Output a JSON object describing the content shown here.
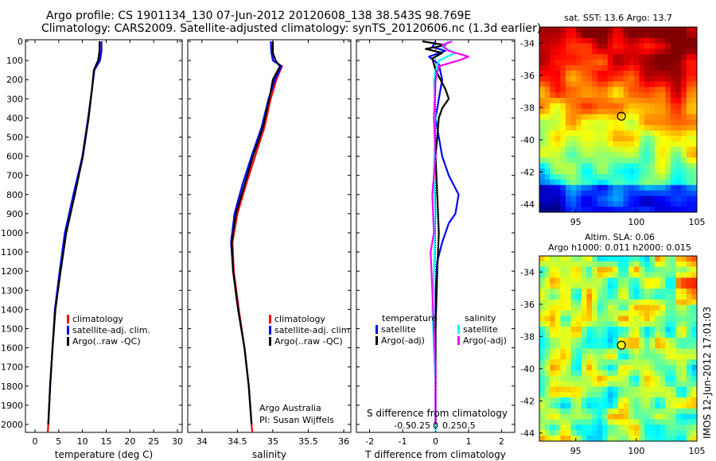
{
  "header": {
    "line1": "Argo profile: CS 1901134_130 07-Jun-2012 20120608_138 38.543S 98.769E",
    "line2": "Climatology: CARS2009. Satellite-adjusted climatology: synTS_20120606.nc (1.3d earlier)"
  },
  "chart_data": [
    {
      "type": "line",
      "name": "temperature-panel",
      "xlabel": "temperature (deg C)",
      "ylabel": "",
      "xlim": [
        -2,
        31
      ],
      "ylim": [
        2050,
        0
      ],
      "xticks": [
        0,
        5,
        10,
        15,
        20,
        25,
        30
      ],
      "yticks": [
        0,
        100,
        200,
        300,
        400,
        500,
        600,
        700,
        800,
        900,
        1000,
        1100,
        1200,
        1300,
        1400,
        1500,
        1600,
        1700,
        1800,
        1900,
        2000
      ],
      "legend": [
        "climatology",
        "satellite-adj. clim.",
        "Argo(..raw -QC)"
      ],
      "legend_colors": [
        "#ff0000",
        "#0000ff",
        "#000000"
      ],
      "series": [
        {
          "name": "climatology",
          "color": "#ff0000",
          "points": [
            [
              14,
              0
            ],
            [
              14,
              50
            ],
            [
              13.7,
              100
            ],
            [
              12.5,
              150
            ],
            [
              12,
              250
            ],
            [
              11.2,
              400
            ],
            [
              10,
              600
            ],
            [
              8.3,
              800
            ],
            [
              6.5,
              1000
            ],
            [
              5.3,
              1200
            ],
            [
              4.3,
              1400
            ],
            [
              3.7,
              1600
            ],
            [
              3.2,
              1800
            ],
            [
              2.8,
              2000
            ],
            [
              2.7,
              2040
            ]
          ]
        },
        {
          "name": "satellite-adj. clim.",
          "color": "#0000ff",
          "points": [
            [
              14,
              0
            ],
            [
              14,
              50
            ],
            [
              13.7,
              100
            ],
            [
              12.5,
              150
            ],
            [
              12,
              250
            ],
            [
              11.2,
              400
            ],
            [
              10,
              600
            ],
            [
              8.1,
              800
            ],
            [
              6.3,
              1000
            ],
            [
              5.2,
              1200
            ],
            [
              4.2,
              1400
            ],
            [
              3.7,
              1600
            ],
            [
              3.2,
              1800
            ],
            [
              2.8,
              2000
            ]
          ]
        },
        {
          "name": "Argo(..raw -QC)",
          "color": "#000000",
          "points": [
            [
              13.6,
              0
            ],
            [
              13.6,
              50
            ],
            [
              13.3,
              100
            ],
            [
              12.4,
              150
            ],
            [
              12,
              250
            ],
            [
              11.3,
              400
            ],
            [
              10.1,
              600
            ],
            [
              8.4,
              800
            ],
            [
              6.6,
              1000
            ],
            [
              5.4,
              1200
            ],
            [
              4.3,
              1400
            ],
            [
              3.7,
              1600
            ],
            [
              3.2,
              1800
            ],
            [
              2.8,
              2000
            ]
          ]
        }
      ]
    },
    {
      "type": "line",
      "name": "salinity-panel",
      "xlabel": "salinity",
      "xlim": [
        33.8,
        36.1
      ],
      "ylim": [
        2050,
        0
      ],
      "xticks": [
        34,
        34.5,
        35,
        35.5,
        36
      ],
      "legend": [
        "climatology",
        "satellite-adj. clim.",
        "Argo(..raw -QC)"
      ],
      "legend_colors": [
        "#ff0000",
        "#0000ff",
        "#000000"
      ],
      "annotation": [
        "Argo Australia",
        "PI: Susan Wijffels"
      ],
      "series": [
        {
          "name": "climatology",
          "color": "#ff0000",
          "points": [
            [
              35.0,
              0
            ],
            [
              35.0,
              60
            ],
            [
              35.0,
              100
            ],
            [
              35.13,
              130
            ],
            [
              35.05,
              200
            ],
            [
              34.97,
              300
            ],
            [
              34.88,
              450
            ],
            [
              34.75,
              600
            ],
            [
              34.62,
              750
            ],
            [
              34.5,
              900
            ],
            [
              34.43,
              1050
            ],
            [
              34.45,
              1200
            ],
            [
              34.52,
              1400
            ],
            [
              34.6,
              1600
            ],
            [
              34.66,
              1800
            ],
            [
              34.7,
              2000
            ],
            [
              34.71,
              2040
            ]
          ]
        },
        {
          "name": "satellite-adj. clim.",
          "color": "#0000ff",
          "points": [
            [
              34.97,
              0
            ],
            [
              34.98,
              60
            ],
            [
              35.0,
              100
            ],
            [
              35.12,
              130
            ],
            [
              35.03,
              200
            ],
            [
              34.94,
              300
            ],
            [
              34.84,
              450
            ],
            [
              34.7,
              600
            ],
            [
              34.57,
              750
            ],
            [
              34.46,
              900
            ],
            [
              34.41,
              1050
            ],
            [
              34.44,
              1200
            ],
            [
              34.51,
              1400
            ],
            [
              34.6,
              1600
            ],
            [
              34.66,
              1800
            ],
            [
              34.7,
              2000
            ]
          ]
        },
        {
          "name": "Argo(..raw -QC)",
          "color": "#000000",
          "points": [
            [
              35.0,
              0
            ],
            [
              35.0,
              60
            ],
            [
              35.04,
              100
            ],
            [
              35.1,
              130
            ],
            [
              35.0,
              200
            ],
            [
              34.95,
              300
            ],
            [
              34.86,
              450
            ],
            [
              34.72,
              600
            ],
            [
              34.6,
              750
            ],
            [
              34.48,
              900
            ],
            [
              34.42,
              1050
            ],
            [
              34.44,
              1200
            ],
            [
              34.51,
              1400
            ],
            [
              34.6,
              1600
            ],
            [
              34.66,
              1800
            ],
            [
              34.7,
              2000
            ]
          ]
        }
      ]
    },
    {
      "type": "line",
      "name": "difference-panel",
      "xlabel": "T difference from climatology",
      "xlabel2": "S difference from climatology",
      "xlim": [
        -2.4,
        2.4
      ],
      "ylim": [
        2050,
        0
      ],
      "xticks": [
        -2,
        -1,
        0,
        1,
        2
      ],
      "xticks_labels": [
        "-2",
        "-1",
        "0",
        "1",
        "2"
      ],
      "xticks2": [
        -1,
        -0.5,
        0,
        0.5,
        1
      ],
      "xticks2_labels": [
        "-0.5",
        "-0.25",
        "0",
        "0.25",
        "0.5"
      ],
      "legend_groups": [
        {
          "title": "temperature",
          "items": [
            "satellite",
            "Argo(-adj)"
          ],
          "colors": [
            "#0000ff",
            "#000000"
          ]
        },
        {
          "title": "salinity",
          "items": [
            "satellite",
            "Argo(-adj)"
          ],
          "colors": [
            "#00ffff",
            "#ff00ff"
          ]
        }
      ],
      "series": [
        {
          "name": "T satellite",
          "color": "#0000ff",
          "points": [
            [
              0,
              0
            ],
            [
              -0.1,
              30
            ],
            [
              0.3,
              50
            ],
            [
              -0.2,
              80
            ],
            [
              0.1,
              120
            ],
            [
              0.2,
              200
            ],
            [
              0.1,
              300
            ],
            [
              0,
              400
            ],
            [
              0.1,
              500
            ],
            [
              0.2,
              600
            ],
            [
              0.4,
              700
            ],
            [
              0.7,
              800
            ],
            [
              0.6,
              900
            ],
            [
              0.4,
              950
            ],
            [
              0.2,
              1050
            ],
            [
              0.05,
              1150
            ],
            [
              0,
              1300
            ],
            [
              0,
              1600
            ],
            [
              0,
              2000
            ]
          ]
        },
        {
          "name": "T Argo(-adj)",
          "color": "#000000",
          "points": [
            [
              -0.4,
              0
            ],
            [
              0.3,
              20
            ],
            [
              -0.3,
              40
            ],
            [
              0.2,
              60
            ],
            [
              -0.1,
              90
            ],
            [
              0,
              150
            ],
            [
              0.3,
              250
            ],
            [
              0.4,
              300
            ],
            [
              0.2,
              350
            ],
            [
              0.1,
              400
            ],
            [
              0.05,
              500
            ],
            [
              0,
              600
            ],
            [
              0.05,
              800
            ],
            [
              0.1,
              1000
            ],
            [
              0.05,
              1200
            ],
            [
              0,
              1500
            ],
            [
              0,
              2000
            ]
          ]
        },
        {
          "name": "S satellite",
          "color": "#00ffff",
          "points": [
            [
              0.4,
              0
            ],
            [
              0.2,
              30
            ],
            [
              0.6,
              60
            ],
            [
              0.1,
              100
            ],
            [
              0,
              150
            ],
            [
              -0.05,
              200
            ],
            [
              0,
              400
            ],
            [
              -0.05,
              700
            ],
            [
              0,
              900
            ],
            [
              -0.05,
              1200
            ],
            [
              -0.1,
              1400
            ],
            [
              -0.05,
              1600
            ],
            [
              0,
              1800
            ],
            [
              0,
              2040
            ]
          ]
        },
        {
          "name": "S Argo(-adj)",
          "color": "#ff00ff",
          "points": [
            [
              0.5,
              0
            ],
            [
              0.2,
              20
            ],
            [
              0.4,
              50
            ],
            [
              1.0,
              80
            ],
            [
              0.7,
              100
            ],
            [
              0.1,
              130
            ],
            [
              0,
              200
            ],
            [
              -0.05,
              400
            ],
            [
              0,
              600
            ],
            [
              -0.1,
              800
            ],
            [
              -0.05,
              1000
            ],
            [
              -0.15,
              1100
            ],
            [
              -0.1,
              1300
            ],
            [
              -0.05,
              1500
            ],
            [
              0,
              1700
            ],
            [
              0,
              2000
            ]
          ]
        }
      ]
    },
    {
      "type": "heatmap",
      "name": "sst-map",
      "title": "sat. SST: 13.6 Argo: 13.7",
      "xlim": [
        92,
        105
      ],
      "ylim": [
        -44.5,
        -33
      ],
      "xticks": [
        95,
        100,
        105
      ],
      "yticks": [
        -34,
        -36,
        -38,
        -40,
        -42,
        -44
      ],
      "marker": [
        98.77,
        -38.54
      ]
    },
    {
      "type": "heatmap",
      "name": "sla-map",
      "title": "Altim. SLA: 0.06",
      "title2": "Argo h1000: 0.011 h2000: 0.015",
      "xlim": [
        92,
        105
      ],
      "ylim": [
        -44.5,
        -33
      ],
      "xticks": [
        95,
        100,
        105
      ],
      "yticks": [
        -34,
        -36,
        -38,
        -40,
        -42,
        -44
      ],
      "marker": [
        98.77,
        -38.54
      ]
    }
  ],
  "footer_stamp": "IMOS 12-Jun-2012 17:01:03",
  "colors": {
    "axis": "#000000",
    "climatology": "#ff0000",
    "satellite": "#0000ff",
    "argo": "#000000",
    "s_satellite": "#00ffff",
    "s_argo": "#ff00ff"
  }
}
